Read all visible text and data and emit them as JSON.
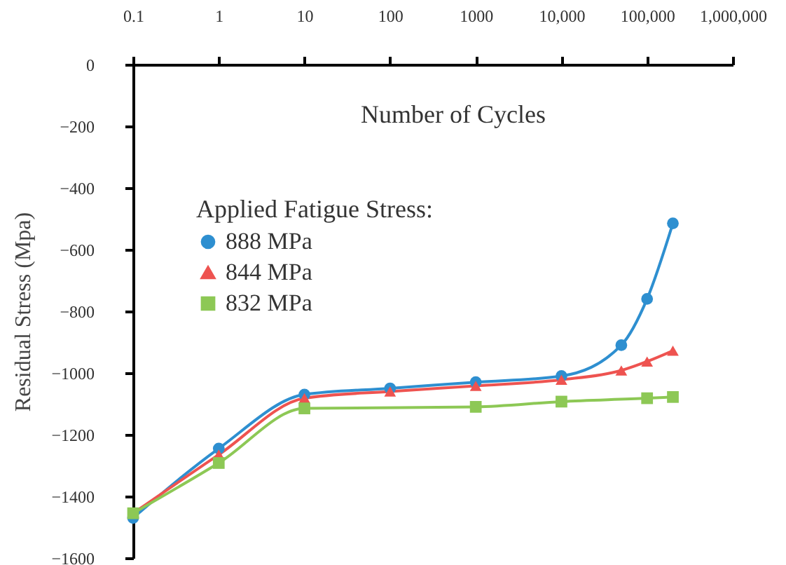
{
  "chart_data": {
    "type": "line",
    "xlabel": "Number of Cycles",
    "ylabel": "Residual Stress (Mpa)",
    "legend_title": "Applied Fatigue Stress:",
    "log": "x",
    "xlim": [
      0.1,
      1000000
    ],
    "xticks": [
      0.1,
      1,
      10,
      100,
      1000,
      {
        "value": 10000,
        "label": "10,000"
      },
      {
        "value": 100000,
        "label": "100,000"
      },
      {
        "value": 1000000,
        "label": "1,000,000"
      }
    ],
    "ylim": [
      -1600,
      0
    ],
    "yticks": [
      {
        "value": -1600,
        "label": "−1600"
      },
      {
        "value": -1400,
        "label": "−1400"
      },
      {
        "value": -1200,
        "label": "−1200"
      },
      {
        "value": -1000,
        "label": "−1000"
      },
      {
        "value": -800,
        "label": "−800"
      },
      {
        "value": -600,
        "label": "−600"
      },
      {
        "value": -400,
        "label": "−400"
      },
      {
        "value": -200,
        "label": "−200"
      },
      0
    ],
    "grid": false,
    "legend": "top left",
    "series": [
      {
        "name": "888 MPa",
        "color": "#2e8fd0",
        "marker": "circle",
        "x": [
          0.1,
          1,
          10,
          100,
          1000,
          10000,
          50000,
          100000,
          200000
        ],
        "values": [
          -1470,
          -1245,
          -1070,
          -1050,
          -1030,
          -1010,
          -910,
          -760,
          -515
        ]
      },
      {
        "name": "844 MPa",
        "color": "#ee5350",
        "marker": "triangle",
        "x": [
          0.1,
          1,
          10,
          100,
          1000,
          10000,
          50000,
          100000,
          200000
        ],
        "values": [
          -1455,
          -1265,
          -1082,
          -1060,
          -1042,
          -1022,
          -992,
          -963,
          -928
        ]
      },
      {
        "name": "832 MPa",
        "color": "#8dc855",
        "marker": "square",
        "x": [
          0.1,
          1,
          10,
          1000,
          10000,
          100000,
          200000
        ],
        "values": [
          -1455,
          -1292,
          -1115,
          -1110,
          -1093,
          -1082,
          -1078
        ]
      }
    ]
  }
}
